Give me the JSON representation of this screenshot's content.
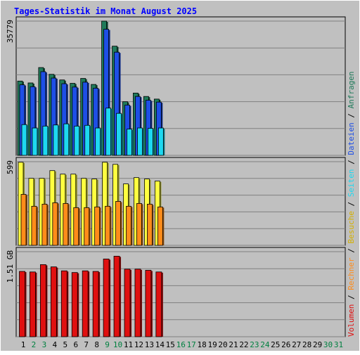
{
  "chart_data": {
    "type": "bar",
    "title": "Tages-Statistik im Monat August 2025",
    "x": [
      "1",
      "2",
      "3",
      "4",
      "5",
      "6",
      "7",
      "8",
      "9",
      "10",
      "11",
      "12",
      "13",
      "14",
      "15",
      "16",
      "17",
      "18",
      "19",
      "20",
      "21",
      "22",
      "23",
      "24",
      "25",
      "26",
      "27",
      "28",
      "29",
      "30",
      "31"
    ],
    "weekend_days": [
      "2",
      "3",
      "9",
      "10",
      "16",
      "17",
      "23",
      "24",
      "30",
      "31"
    ],
    "colors": {
      "background": "#c0c0c0",
      "frame": "#ffffff",
      "gridline": "#808080",
      "title": "#0000ff",
      "weekday_label": "#000000",
      "weekend_label": "#008040"
    },
    "panels": [
      {
        "id": "hits",
        "ymax_label": "35779",
        "ymax": 35779,
        "series": [
          {
            "name": "Anfragen",
            "color": "#1f7a5a",
            "values": [
              19800,
              19300,
              23400,
              21600,
              20100,
              19200,
              20500,
              18900,
              35780,
              29100,
              14300,
              16600,
              15700,
              15000,
              0,
              0,
              0,
              0,
              0,
              0,
              0,
              0,
              0,
              0,
              0,
              0,
              0,
              0,
              0,
              0,
              0
            ]
          },
          {
            "name": "Dateien",
            "color": "#1e4fe6",
            "values": [
              18800,
              18300,
              22300,
              20600,
              19100,
              18200,
              19500,
              17900,
              33600,
              27500,
              13400,
              15700,
              14700,
              14200,
              0,
              0,
              0,
              0,
              0,
              0,
              0,
              0,
              0,
              0,
              0,
              0,
              0,
              0,
              0,
              0,
              0
            ]
          },
          {
            "name": "Seiten",
            "color": "#1ed8f0",
            "values": [
              8200,
              7300,
              7800,
              8100,
              8400,
              7800,
              8000,
              7300,
              12600,
              11200,
              7000,
              7300,
              7200,
              7300,
              0,
              0,
              0,
              0,
              0,
              0,
              0,
              0,
              0,
              0,
              0,
              0,
              0,
              0,
              0,
              0,
              0
            ]
          }
        ]
      },
      {
        "id": "visits",
        "ymax_label": "599",
        "ymax": 599,
        "series": [
          {
            "name": "Besuche",
            "color": "#ffff40",
            "values": [
              595,
              480,
              480,
              535,
              510,
              510,
              480,
              475,
              595,
              580,
              440,
              485,
              475,
              460,
              0,
              0,
              0,
              0,
              0,
              0,
              0,
              0,
              0,
              0,
              0,
              0,
              0,
              0,
              0,
              0,
              0
            ]
          },
          {
            "name": "Rechner",
            "color": "#ff8c1a",
            "values": [
              365,
              280,
              295,
              305,
              300,
              270,
              270,
              275,
              280,
              315,
              280,
              300,
              295,
              275,
              0,
              0,
              0,
              0,
              0,
              0,
              0,
              0,
              0,
              0,
              0,
              0,
              0,
              0,
              0,
              0,
              0
            ]
          }
        ]
      },
      {
        "id": "volume",
        "ymax_label": "1.51 GB",
        "ymax": 1.51,
        "series": [
          {
            "name": "Volumen",
            "color": "#e01010",
            "values": [
              1.16,
              1.15,
              1.28,
              1.24,
              1.17,
              1.14,
              1.17,
              1.16,
              1.38,
              1.43,
              1.2,
              1.2,
              1.18,
              1.15,
              0,
              0,
              0,
              0,
              0,
              0,
              0,
              0,
              0,
              0,
              0,
              0,
              0,
              0,
              0,
              0,
              0
            ]
          }
        ]
      }
    ],
    "legend": [
      {
        "name": "Volumen",
        "color": "#e01010"
      },
      {
        "name": " / ",
        "color": "#000000"
      },
      {
        "name": "Rechner",
        "color": "#ff8c1a"
      },
      {
        "name": " / ",
        "color": "#000000"
      },
      {
        "name": "Besuche",
        "color": "#d4b000"
      },
      {
        "name": " / ",
        "color": "#000000"
      },
      {
        "name": "Seiten",
        "color": "#1ed8f0"
      },
      {
        "name": " / ",
        "color": "#000000"
      },
      {
        "name": "Dateien",
        "color": "#1e4fe6"
      },
      {
        "name": " / ",
        "color": "#000000"
      },
      {
        "name": "Anfragen",
        "color": "#1f7a5a"
      }
    ]
  }
}
